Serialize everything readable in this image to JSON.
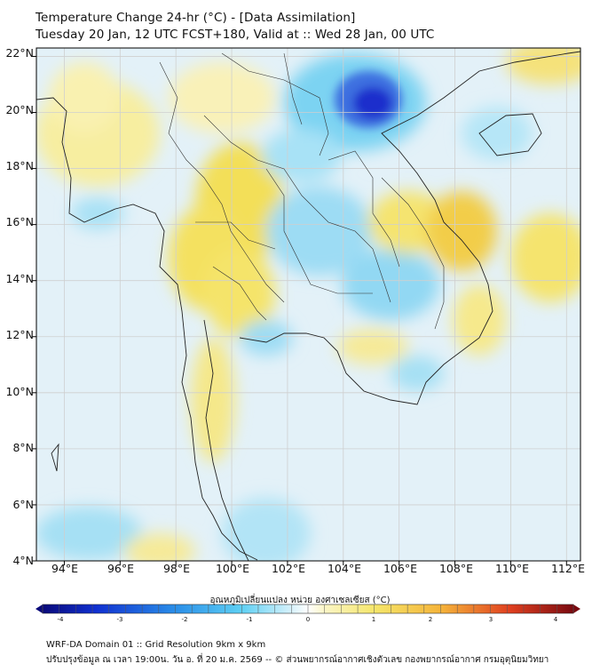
{
  "header": {
    "title_line1": "Temperature Change 24-hr (°C) - [Data Assimilation]",
    "title_line2": "Tuesday 20 Jan, 12 UTC FCST+180, Valid at :: Wed 28 Jan, 00 UTC"
  },
  "map": {
    "lat_labels": [
      "22°N",
      "20°N",
      "18°N",
      "16°N",
      "14°N",
      "12°N",
      "10°N",
      "8°N",
      "6°N",
      "4°N"
    ],
    "lon_labels": [
      "94°E",
      "96°E",
      "98°E",
      "100°E",
      "102°E",
      "104°E",
      "106°E",
      "108°E",
      "110°E",
      "112°E"
    ],
    "lat_range": [
      4,
      22.3
    ],
    "lon_range": [
      93,
      112.5
    ]
  },
  "colorbar": {
    "title": "อุณหภูมิเปลี่ยนแปลง หน่วย องศาเซลเซียส (°C)",
    "ticks": [
      "-4",
      "-3",
      "-2",
      "-1",
      "0",
      "1",
      "2",
      "3",
      "4"
    ],
    "range": [
      -4,
      4
    ]
  },
  "footer": {
    "line1": "WRF-DA Domain 01 :: Grid Resolution 9km x 9km",
    "line2": "ปรับปรุงข้อมูล ณ เวลา 19:00น. วัน อ. ที่ 20 ม.ค. 2569 -- © ส่วนพยากรณ์อากาศเชิงตัวเลข กองพยากรณ์อากาศ กรมอุตุนิยมวิทยา"
  },
  "colors": {
    "cold_strong": "#1a2ecc",
    "cold": "#5ec8f0",
    "neutral": "#e8f4fa",
    "warm": "#f5e66a",
    "warm_strong": "#f0b43c",
    "coast": "#222222",
    "grid": "#cfcfcf"
  }
}
